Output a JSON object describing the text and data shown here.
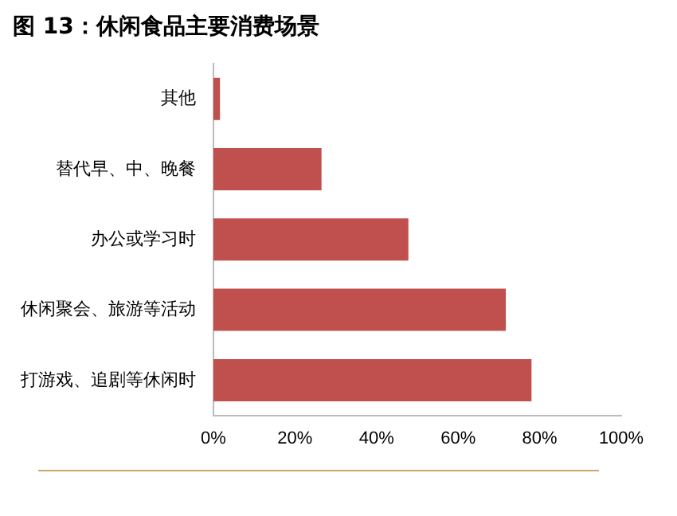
{
  "chart_data": {
    "type": "bar",
    "orientation": "horizontal",
    "title": "图 13：休闲食品主要消费场景",
    "categories": [
      "其他",
      "替代早、中、晚餐",
      "办公或学习时",
      "休闲聚会、旅游等活动",
      "打游戏、追剧等休闲时"
    ],
    "values": [
      1.6,
      26.5,
      47.8,
      71.7,
      78.0
    ],
    "color": "#c0504d",
    "xlim": [
      0,
      100
    ],
    "xticks": [
      {
        "value": 0,
        "label": "0%"
      },
      {
        "value": 20,
        "label": "20%"
      },
      {
        "value": 40,
        "label": "40%"
      },
      {
        "value": 60,
        "label": "60%"
      },
      {
        "value": 80,
        "label": "80%"
      },
      {
        "value": 100,
        "label": "100%"
      }
    ],
    "grid": false,
    "legend": false
  }
}
